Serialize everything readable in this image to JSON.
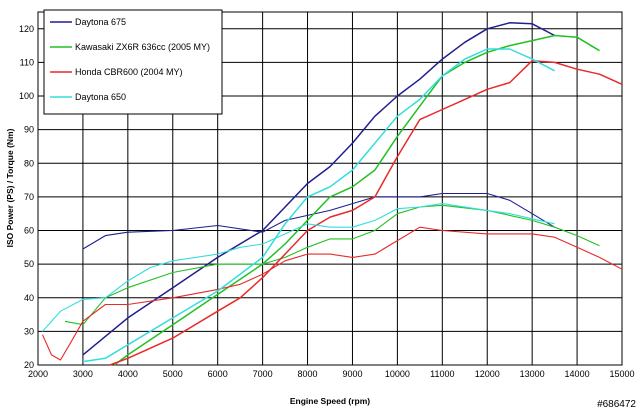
{
  "chart_data": {
    "type": "line",
    "xlabel": "Engine Speed (rpm)",
    "ylabel": "ISO Power (PS) / Torque (Nm)",
    "xlim": [
      2000,
      15000
    ],
    "ylim": [
      20,
      125
    ],
    "xticks": [
      2000,
      3000,
      4000,
      5000,
      6000,
      7000,
      8000,
      9000,
      10000,
      11000,
      12000,
      13000,
      14000,
      15000
    ],
    "yticks": [
      20,
      30,
      40,
      50,
      60,
      70,
      80,
      90,
      100,
      110,
      120
    ],
    "grid": true,
    "legend_position": "top-left",
    "watermark": "#686472",
    "series": [
      {
        "name": "Daytona 675",
        "color": "#1f1f8f",
        "power": [
          [
            3000,
            23
          ],
          [
            4000,
            34
          ],
          [
            5000,
            43
          ],
          [
            6000,
            52
          ],
          [
            7000,
            60
          ],
          [
            7500,
            67
          ],
          [
            8000,
            74
          ],
          [
            8500,
            79
          ],
          [
            9000,
            86
          ],
          [
            9500,
            94
          ],
          [
            10000,
            100
          ],
          [
            10500,
            105
          ],
          [
            11000,
            111
          ],
          [
            11500,
            116
          ],
          [
            12000,
            120
          ],
          [
            12500,
            121.8
          ],
          [
            13000,
            121.5
          ],
          [
            13500,
            118
          ]
        ],
        "torque": [
          [
            3000,
            54.5
          ],
          [
            3500,
            58.5
          ],
          [
            4000,
            59.5
          ],
          [
            5000,
            60
          ],
          [
            6000,
            61.5
          ],
          [
            7000,
            59.5
          ],
          [
            7500,
            63
          ],
          [
            8000,
            64.5
          ],
          [
            8500,
            66
          ],
          [
            9000,
            68
          ],
          [
            9500,
            70
          ],
          [
            10000,
            70
          ],
          [
            10500,
            70
          ],
          [
            11000,
            71
          ],
          [
            12000,
            71
          ],
          [
            12500,
            69
          ],
          [
            13000,
            65
          ],
          [
            13500,
            61
          ]
        ]
      },
      {
        "name": "Kawasaki ZX6R 636cc (2005 MY)",
        "color": "#22c022",
        "power": [
          [
            3700,
            20
          ],
          [
            4000,
            23
          ],
          [
            5000,
            32
          ],
          [
            6000,
            41
          ],
          [
            7000,
            50
          ],
          [
            7500,
            56
          ],
          [
            8000,
            63
          ],
          [
            8500,
            70
          ],
          [
            9000,
            73
          ],
          [
            9500,
            78
          ],
          [
            10000,
            88
          ],
          [
            10500,
            97
          ],
          [
            11000,
            106
          ],
          [
            11500,
            110
          ],
          [
            12000,
            113
          ],
          [
            12500,
            115
          ],
          [
            13000,
            116.5
          ],
          [
            13500,
            118
          ],
          [
            14000,
            117.5
          ],
          [
            14500,
            113.5
          ]
        ],
        "torque": [
          [
            2600,
            33
          ],
          [
            3000,
            32
          ],
          [
            3500,
            40
          ],
          [
            4000,
            43
          ],
          [
            5000,
            47.5
          ],
          [
            6000,
            50
          ],
          [
            7000,
            50
          ],
          [
            7500,
            52
          ],
          [
            8000,
            55
          ],
          [
            8500,
            57.5
          ],
          [
            9000,
            57.5
          ],
          [
            9500,
            60
          ],
          [
            10000,
            65
          ],
          [
            10500,
            67
          ],
          [
            11000,
            67.5
          ],
          [
            12000,
            66
          ],
          [
            13000,
            63
          ],
          [
            13500,
            61
          ],
          [
            14000,
            58.5
          ],
          [
            14500,
            55.5
          ]
        ]
      },
      {
        "name": "Honda CBR600 (2004 MY)",
        "color": "#e82a2a",
        "power": [
          [
            3600,
            20
          ],
          [
            4000,
            22
          ],
          [
            5000,
            28
          ],
          [
            6000,
            36
          ],
          [
            6500,
            40
          ],
          [
            7000,
            46
          ],
          [
            7500,
            53
          ],
          [
            8000,
            60
          ],
          [
            8500,
            64
          ],
          [
            9000,
            66
          ],
          [
            9500,
            70
          ],
          [
            10000,
            82
          ],
          [
            10500,
            93
          ],
          [
            11000,
            96
          ],
          [
            11500,
            99
          ],
          [
            12000,
            102
          ],
          [
            12500,
            104
          ],
          [
            13000,
            110.5
          ],
          [
            13500,
            110
          ],
          [
            14000,
            108
          ],
          [
            14500,
            106.5
          ],
          [
            15000,
            103.5
          ]
        ],
        "torque": [
          [
            2100,
            29
          ],
          [
            2300,
            23
          ],
          [
            2500,
            21.5
          ],
          [
            2700,
            26
          ],
          [
            3000,
            33
          ],
          [
            3500,
            38
          ],
          [
            4000,
            38
          ],
          [
            5000,
            40
          ],
          [
            6000,
            42.5
          ],
          [
            6500,
            44
          ],
          [
            7000,
            47
          ],
          [
            7500,
            51
          ],
          [
            8000,
            53
          ],
          [
            8500,
            53
          ],
          [
            9000,
            52
          ],
          [
            9500,
            53
          ],
          [
            10000,
            57
          ],
          [
            10500,
            61
          ],
          [
            11000,
            60
          ],
          [
            12000,
            59
          ],
          [
            13000,
            59
          ],
          [
            13500,
            58
          ],
          [
            14000,
            55
          ],
          [
            14500,
            52
          ],
          [
            15000,
            48.5
          ]
        ]
      },
      {
        "name": "Daytona 650",
        "color": "#33dddd",
        "power": [
          [
            3000,
            21
          ],
          [
            3500,
            22
          ],
          [
            4000,
            26
          ],
          [
            5000,
            34
          ],
          [
            6000,
            42
          ],
          [
            7000,
            52
          ],
          [
            7500,
            62
          ],
          [
            8000,
            70
          ],
          [
            8500,
            73
          ],
          [
            9000,
            78
          ],
          [
            9500,
            86
          ],
          [
            10000,
            94
          ],
          [
            10500,
            99
          ],
          [
            11000,
            106
          ],
          [
            11500,
            111
          ],
          [
            12000,
            114
          ],
          [
            12500,
            114
          ],
          [
            13000,
            111
          ],
          [
            13500,
            107.5
          ]
        ],
        "torque": [
          [
            2100,
            30
          ],
          [
            2500,
            36
          ],
          [
            3000,
            39.5
          ],
          [
            3500,
            40
          ],
          [
            4000,
            45
          ],
          [
            4500,
            49
          ],
          [
            5000,
            51
          ],
          [
            6000,
            53
          ],
          [
            6500,
            55
          ],
          [
            7000,
            56
          ],
          [
            7500,
            59
          ],
          [
            8000,
            62
          ],
          [
            8500,
            61
          ],
          [
            9000,
            61
          ],
          [
            9500,
            63
          ],
          [
            10000,
            66.5
          ],
          [
            10500,
            67
          ],
          [
            11000,
            68
          ],
          [
            12000,
            66
          ],
          [
            12500,
            65
          ],
          [
            13000,
            63.5
          ],
          [
            13500,
            62
          ]
        ]
      }
    ]
  }
}
